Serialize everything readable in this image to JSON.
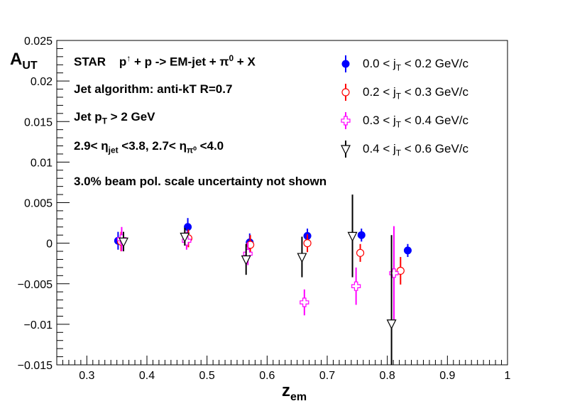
{
  "chart_data": {
    "type": "scatter",
    "xlabel": "z",
    "xlabel_sub": "em",
    "ylabel": "A",
    "ylabel_sub": "UT",
    "xlim": [
      0.25,
      1.0
    ],
    "ylim": [
      -0.015,
      0.025
    ],
    "x_ticks": [
      "0.3",
      "0.4",
      "0.5",
      "0.6",
      "0.7",
      "0.8",
      "0.9",
      "1"
    ],
    "y_ticks": [
      "−0.015",
      "−0.01",
      "−0.005",
      "0",
      "0.005",
      "0.01",
      "0.015",
      "0.02",
      "0.025"
    ],
    "annotations": {
      "line1_a": "STAR",
      "line1_b": "p",
      "line1_arrow": "↑",
      "line1_c": " + p -> EM-jet + π",
      "line1_sup": "0",
      "line1_d": " + X",
      "line2": "Jet algorithm: anti-kT R=0.7",
      "line3_a": "Jet p",
      "line3_sub": "T",
      "line3_b": " > 2 GeV",
      "line4_a": "2.9< η",
      "line4_sub1": "jet",
      "line4_b": " <3.8, 2.7< η",
      "line4_sub2": "π⁰",
      "line4_c": " <4.0",
      "line5": "3.0% beam pol. scale uncertainty not shown"
    },
    "series": [
      {
        "name_a": "0.0 < j",
        "name_sub": "T",
        "name_b": " < 0.2 GeV/c",
        "color": "#0000ff",
        "marker": "filled-circle",
        "points": [
          {
            "x": 0.352,
            "y": 0.0003,
            "err": 0.0011
          },
          {
            "x": 0.468,
            "y": 0.002,
            "err": 0.0011
          },
          {
            "x": 0.571,
            "y": 0.0001,
            "err": 0.0011
          },
          {
            "x": 0.667,
            "y": 0.0009,
            "err": 0.0009
          },
          {
            "x": 0.757,
            "y": 0.001,
            "err": 0.0008
          },
          {
            "x": 0.834,
            "y": -0.0009,
            "err": 0.0008
          }
        ]
      },
      {
        "name_a": "0.2 < j",
        "name_sub": "T",
        "name_b": " < 0.3 GeV/c",
        "color": "#ff0000",
        "marker": "open-circle",
        "points": [
          {
            "x": 0.357,
            "y": 0.0002,
            "err": 0.0012
          },
          {
            "x": 0.469,
            "y": 0.0006,
            "err": 0.0011
          },
          {
            "x": 0.572,
            "y": -0.0002,
            "err": 0.0012
          },
          {
            "x": 0.667,
            "y": 0.0,
            "err": 0.0011
          },
          {
            "x": 0.755,
            "y": -0.0012,
            "err": 0.0011
          },
          {
            "x": 0.822,
            "y": -0.0034,
            "err": 0.0017
          }
        ]
      },
      {
        "name_a": "0.3 < j",
        "name_sub": "T",
        "name_b": " < 0.4 GeV/c",
        "color": "#ff00ff",
        "marker": "open-cross",
        "points": [
          {
            "x": 0.358,
            "y": 0.0005,
            "err": 0.0015
          },
          {
            "x": 0.466,
            "y": 0.0003,
            "err": 0.0011
          },
          {
            "x": 0.568,
            "y": -0.0013,
            "err": 0.0014
          },
          {
            "x": 0.662,
            "y": -0.0073,
            "err": 0.0016
          },
          {
            "x": 0.748,
            "y": -0.0053,
            "err": 0.0023
          },
          {
            "x": 0.811,
            "y": -0.0037,
            "err": 0.0058
          }
        ]
      },
      {
        "name_a": "0.4 < j",
        "name_sub": "T",
        "name_b": " < 0.6 GeV/c",
        "color": "#000000",
        "marker": "open-triangle-down",
        "points": [
          {
            "x": 0.361,
            "y": 0.0002,
            "err": 0.0012
          },
          {
            "x": 0.463,
            "y": 0.0008,
            "err": 0.0011
          },
          {
            "x": 0.565,
            "y": -0.002,
            "err": 0.0019
          },
          {
            "x": 0.658,
            "y": -0.0017,
            "err": 0.0025
          },
          {
            "x": 0.742,
            "y": 0.0009,
            "err": 0.0051
          },
          {
            "x": 0.807,
            "y": -0.0099,
            "err": 0.0109
          }
        ]
      }
    ],
    "grid": false,
    "legend_placement": "top-right"
  }
}
